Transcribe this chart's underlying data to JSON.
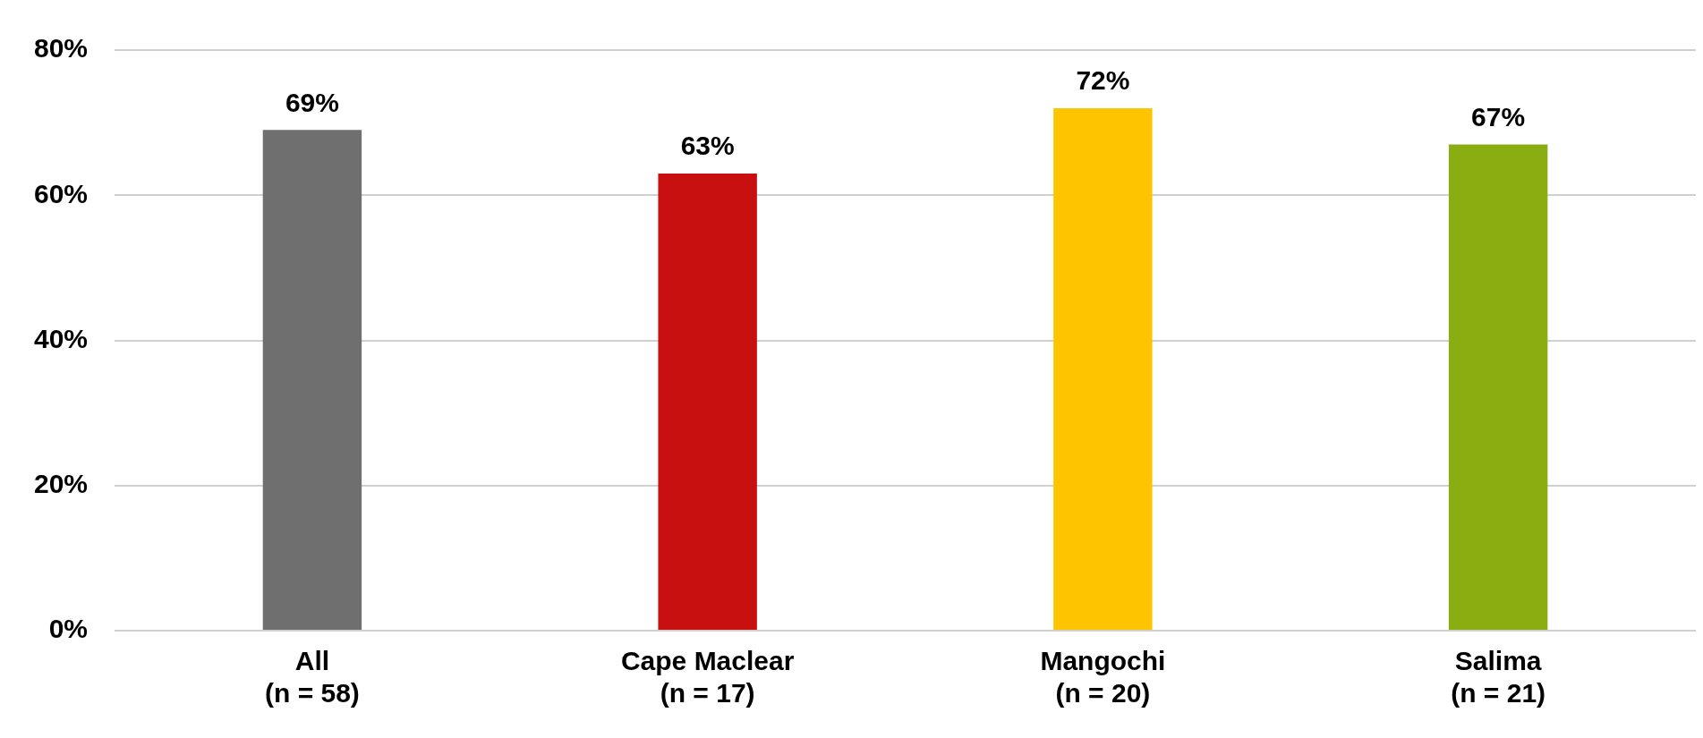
{
  "chart_data": {
    "type": "bar",
    "categories": [
      "All\n(n = 58)",
      "Cape Maclear\n(n = 17)",
      "Mangochi\n(n = 20)",
      "Salima\n(n = 21)"
    ],
    "values": [
      69,
      63,
      72,
      67
    ],
    "colors": [
      "#6f6f6f",
      "#c81010",
      "#ffc400",
      "#8aad12"
    ],
    "value_labels": [
      "69%",
      "63%",
      "72%",
      "67%"
    ],
    "ylim": [
      0,
      80
    ],
    "yticks": [
      {
        "value": 0,
        "label": "0%"
      },
      {
        "value": 20,
        "label": "20%"
      },
      {
        "value": 40,
        "label": "40%"
      },
      {
        "value": 60,
        "label": "60%"
      },
      {
        "value": 80,
        "label": "80%"
      }
    ],
    "grid": "y",
    "legend": false
  }
}
